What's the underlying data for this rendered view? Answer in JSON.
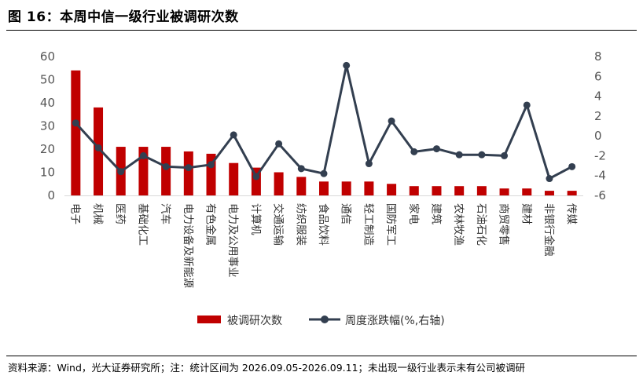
{
  "figure": {
    "title": "图 16：本周中信一级行业被调研次数",
    "source": "资料来源：Wind，光大证券研究所；注：统计区间为 2026.09.05-2026.09.11；未出现一级行业表示未有公司被调研"
  },
  "chart_data": {
    "type": "bar",
    "categories": [
      "电子",
      "机械",
      "医药",
      "基础化工",
      "汽车",
      "电力设备及新能源",
      "有色金属",
      "电力及公用事业",
      "计算机",
      "交通运输",
      "纺织服装",
      "食品饮料",
      "通信",
      "轻工制造",
      "国防军工",
      "家电",
      "建筑",
      "农林牧渔",
      "石油石化",
      "商贸零售",
      "建材",
      "非银行金融",
      "传媒"
    ],
    "series": [
      {
        "name": "被调研次数",
        "type": "bar",
        "axis": "left",
        "color": "#C00000",
        "values": [
          54,
          38,
          21,
          21,
          21,
          19,
          18,
          14,
          12,
          10,
          8,
          6,
          6,
          6,
          5,
          4,
          4,
          4,
          4,
          3,
          3,
          2,
          2
        ]
      },
      {
        "name": "周度涨跌幅(%,右轴)",
        "type": "line",
        "axis": "right",
        "color": "#333F50",
        "values": [
          1.3,
          -1.2,
          -3.6,
          -2.0,
          -3.1,
          -3.2,
          -2.9,
          0.1,
          -4.1,
          -0.8,
          -3.3,
          -3.8,
          7.1,
          -2.8,
          1.5,
          -1.6,
          -1.3,
          -1.9,
          -1.9,
          -2.0,
          3.1,
          -4.3,
          -3.1
        ]
      }
    ],
    "y_left": {
      "ylim": [
        0,
        60
      ],
      "ticks": [
        0,
        10,
        20,
        30,
        40,
        50,
        60
      ]
    },
    "y_right": {
      "ylim": [
        -6,
        8
      ],
      "ticks": [
        -6,
        -4,
        -2,
        0,
        2,
        4,
        6,
        8
      ],
      "tick_labels": [
        "-6",
        "-4",
        "-2",
        "0",
        "2",
        "4",
        "6",
        "8"
      ]
    },
    "grid": false,
    "legend_position": "bottom"
  }
}
